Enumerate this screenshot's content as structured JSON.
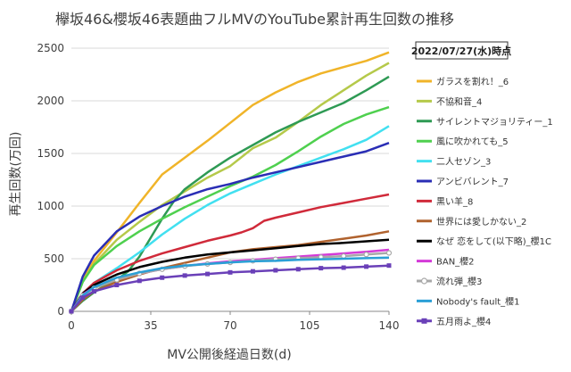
{
  "chart_data": {
    "type": "line",
    "title": "欅坂46&櫻坂46表題曲フルMVのYouTube累計再生回数の推移",
    "xlabel": "MV公開後経過日数(d)",
    "ylabel": "再生回数(万回)",
    "xlim": [
      0,
      140
    ],
    "ylim": [
      0,
      2500
    ],
    "xticks": [
      0,
      35,
      70,
      105,
      140
    ],
    "yticks": [
      0,
      500,
      1000,
      1500,
      2000,
      2500
    ],
    "grid": "horizontal",
    "legend_position": "right",
    "legend_date": "2022/07/27(水)時点",
    "series": [
      {
        "name": "ガラスを割れ！_6",
        "color": "#f0b429",
        "marker": "none",
        "x": [
          0,
          5,
          10,
          20,
          30,
          40,
          50,
          60,
          70,
          80,
          90,
          100,
          110,
          120,
          130,
          140
        ],
        "y": [
          0,
          300,
          480,
          750,
          1030,
          1300,
          1460,
          1620,
          1790,
          1960,
          2080,
          2180,
          2260,
          2320,
          2380,
          2460
        ]
      },
      {
        "name": "不協和音_4",
        "color": "#b5c94a",
        "marker": "none",
        "x": [
          0,
          5,
          10,
          20,
          30,
          40,
          50,
          60,
          70,
          80,
          90,
          100,
          110,
          120,
          130,
          140
        ],
        "y": [
          0,
          280,
          450,
          680,
          850,
          1010,
          1140,
          1270,
          1380,
          1550,
          1650,
          1800,
          1960,
          2100,
          2240,
          2360
        ]
      },
      {
        "name": "サイレントマジョリティー_1",
        "color": "#2e9a54",
        "marker": "none",
        "x": [
          0,
          5,
          10,
          15,
          20,
          25,
          30,
          35,
          40,
          45,
          50,
          60,
          70,
          80,
          90,
          100,
          110,
          120,
          130,
          140
        ],
        "y": [
          0,
          100,
          180,
          250,
          300,
          380,
          520,
          700,
          880,
          1040,
          1160,
          1320,
          1460,
          1580,
          1700,
          1800,
          1890,
          1980,
          2100,
          2230
        ]
      },
      {
        "name": "風に吹かれても_5",
        "color": "#4fd04f",
        "marker": "none",
        "x": [
          0,
          5,
          10,
          20,
          30,
          40,
          50,
          60,
          70,
          80,
          90,
          100,
          110,
          120,
          130,
          140
        ],
        "y": [
          0,
          280,
          440,
          620,
          760,
          880,
          990,
          1090,
          1190,
          1280,
          1390,
          1520,
          1660,
          1780,
          1870,
          1940
        ]
      },
      {
        "name": "二人セゾン_3",
        "color": "#42e0f0",
        "marker": "none",
        "x": [
          0,
          5,
          10,
          20,
          30,
          40,
          50,
          60,
          70,
          80,
          90,
          100,
          110,
          120,
          130,
          140
        ],
        "y": [
          0,
          150,
          270,
          410,
          560,
          730,
          880,
          1010,
          1120,
          1210,
          1300,
          1380,
          1460,
          1540,
          1630,
          1760
        ]
      },
      {
        "name": "アンビバレント_7",
        "color": "#2a2eb5",
        "marker": "none",
        "x": [
          0,
          5,
          10,
          20,
          30,
          40,
          50,
          60,
          70,
          80,
          90,
          100,
          110,
          120,
          130,
          140
        ],
        "y": [
          0,
          330,
          530,
          760,
          900,
          1000,
          1090,
          1160,
          1210,
          1270,
          1320,
          1370,
          1420,
          1470,
          1520,
          1600
        ]
      },
      {
        "name": "黒い羊_8",
        "color": "#d02a3a",
        "marker": "none",
        "x": [
          0,
          5,
          10,
          20,
          30,
          40,
          50,
          60,
          70,
          75,
          80,
          85,
          90,
          100,
          110,
          120,
          130,
          140
        ],
        "y": [
          0,
          170,
          270,
          390,
          480,
          550,
          610,
          670,
          720,
          750,
          790,
          860,
          890,
          940,
          990,
          1030,
          1070,
          1110
        ]
      },
      {
        "name": "世界には愛しかない_2",
        "color": "#b0622e",
        "marker": "none",
        "x": [
          0,
          5,
          10,
          20,
          30,
          40,
          50,
          60,
          70,
          80,
          90,
          100,
          110,
          120,
          130,
          140
        ],
        "y": [
          0,
          110,
          190,
          280,
          350,
          410,
          460,
          510,
          560,
          590,
          610,
          630,
          660,
          690,
          720,
          760
        ]
      },
      {
        "name": "なぜ 恋をして(以下略)_櫻1C",
        "color": "#000000",
        "marker": "none",
        "x": [
          0,
          5,
          10,
          20,
          30,
          40,
          50,
          60,
          70,
          80,
          90,
          100,
          110,
          120,
          130,
          140
        ],
        "y": [
          0,
          170,
          250,
          350,
          420,
          470,
          510,
          540,
          560,
          580,
          600,
          620,
          640,
          650,
          665,
          680
        ]
      },
      {
        "name": "BAN_櫻2",
        "color": "#d43ad8",
        "marker": "none",
        "x": [
          0,
          5,
          10,
          20,
          30,
          40,
          50,
          60,
          70,
          80,
          90,
          100,
          110,
          120,
          130,
          140
        ],
        "y": [
          0,
          160,
          230,
          310,
          360,
          400,
          430,
          455,
          475,
          490,
          505,
          520,
          535,
          550,
          565,
          585
        ]
      },
      {
        "name": "流れ弾_櫻3",
        "color": "#a8a8a8",
        "marker": "circle",
        "x": [
          0,
          5,
          10,
          20,
          30,
          40,
          50,
          60,
          70,
          80,
          90,
          100,
          110,
          120,
          130,
          140
        ],
        "y": [
          0,
          150,
          220,
          300,
          360,
          400,
          430,
          450,
          465,
          480,
          495,
          505,
          515,
          525,
          540,
          555
        ]
      },
      {
        "name": "Nobody's fault_櫻1",
        "color": "#2a9fd6",
        "marker": "none",
        "x": [
          0,
          5,
          10,
          20,
          30,
          40,
          50,
          60,
          70,
          80,
          90,
          100,
          110,
          120,
          130,
          140
        ],
        "y": [
          0,
          150,
          230,
          320,
          370,
          410,
          435,
          450,
          465,
          475,
          480,
          490,
          495,
          500,
          505,
          510
        ]
      },
      {
        "name": "五月雨よ_櫻4",
        "color": "#6a40b8",
        "marker": "square",
        "x": [
          0,
          5,
          10,
          20,
          30,
          40,
          50,
          60,
          70,
          80,
          90,
          100,
          110,
          120,
          130,
          140
        ],
        "y": [
          0,
          130,
          190,
          250,
          290,
          320,
          340,
          355,
          370,
          380,
          390,
          400,
          410,
          415,
          425,
          435
        ]
      }
    ]
  }
}
